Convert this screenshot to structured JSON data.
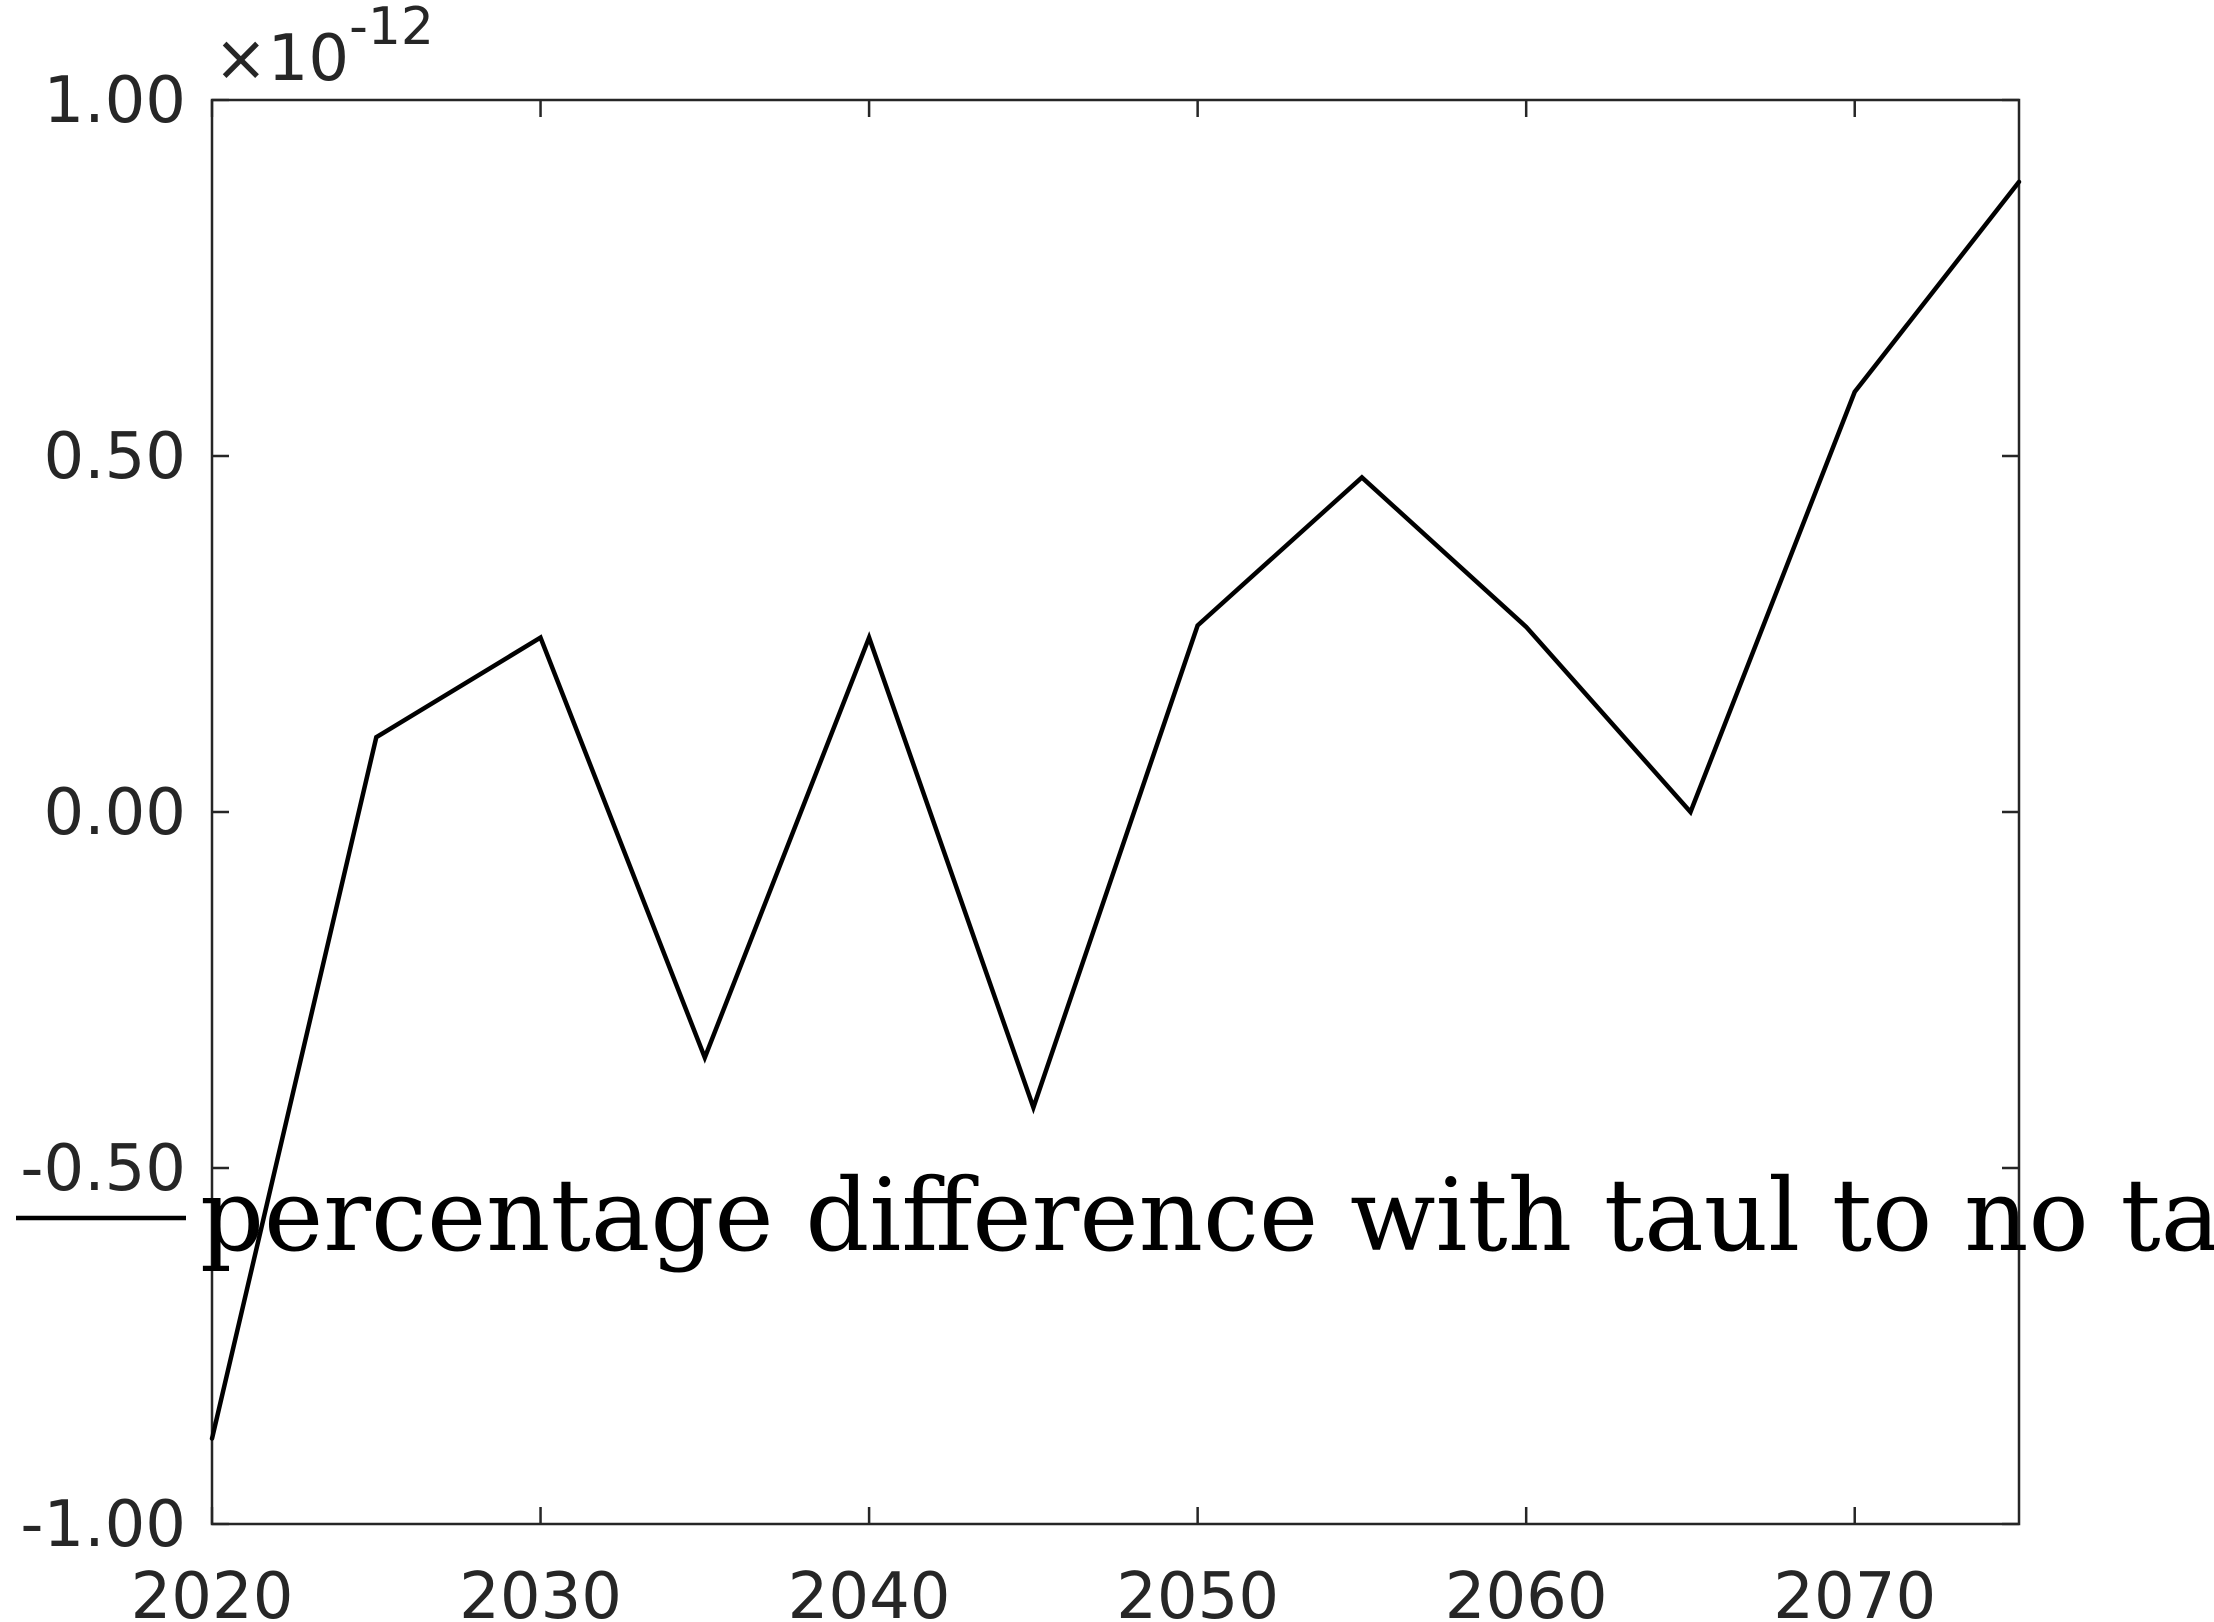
{
  "chart_data": {
    "type": "line",
    "title": "",
    "xlabel": "",
    "ylabel": "",
    "xlim": [
      2020,
      2075
    ],
    "ylim": [
      -1.0,
      1.0
    ],
    "x_ticks": [
      2020,
      2030,
      2040,
      2050,
      2060,
      2070
    ],
    "x_tick_labels": [
      "2020",
      "2030",
      "2040",
      "2050",
      "2060",
      "2070"
    ],
    "y_ticks": [
      -1.0,
      -0.5,
      0.0,
      0.5,
      1.0
    ],
    "y_tick_labels": [
      "-1.00",
      "-0.50",
      "0.00",
      "0.50",
      "1.00"
    ],
    "y_exponent": {
      "base": "×10",
      "power": "-12"
    },
    "grid": false,
    "legend_position": "center-left",
    "series": [
      {
        "name": "percentage difference with taul to no taul",
        "color": "#000000",
        "x": [
          2020,
          2025,
          2030,
          2035,
          2040,
          2045,
          2050,
          2055,
          2060,
          2065,
          2070,
          2075
        ],
        "y": [
          -0.88,
          0.105,
          0.245,
          -0.345,
          0.245,
          -0.415,
          0.262,
          0.47,
          0.26,
          0.0,
          0.59,
          0.885
        ]
      }
    ]
  }
}
